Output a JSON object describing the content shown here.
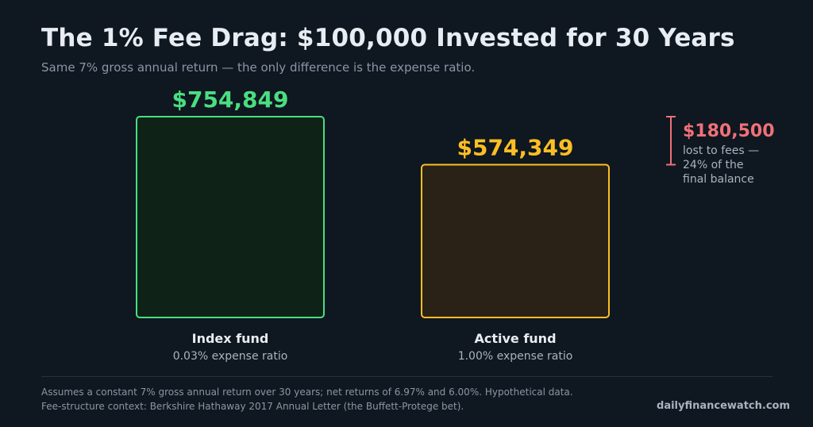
{
  "header": {
    "title": "The 1% Fee Drag: $100,000 Invested for 30 Years",
    "subtitle": "Same 7% gross annual return — the only difference is the expense ratio."
  },
  "chart_data": {
    "type": "bar",
    "categories": [
      "Index fund",
      "Active fund"
    ],
    "category_sublabels": [
      "0.03% expense ratio",
      "1.00% expense ratio"
    ],
    "values": [
      754849,
      574349
    ],
    "value_labels": [
      "$754,849",
      "$574,349"
    ],
    "colors": {
      "index": "#4ade80",
      "index_fill": "#0f2218",
      "active": "#fbbf24",
      "active_fill": "#2a2216",
      "callout": "#f07178"
    },
    "ylim": [
      0,
      754849
    ],
    "annotation": {
      "value": "$180,500",
      "text_lines": [
        "lost to fees —",
        "24% of the",
        "final balance"
      ]
    },
    "grid": false
  },
  "footer": {
    "note1": "Assumes a constant 7% gross annual return over 30 years; net returns of 6.97% and 6.00%. Hypothetical data.",
    "note2": "Fee-structure context: Berkshire Hathaway 2017 Annual Letter (the Buffett-Protege bet).",
    "source": "dailyfinancewatch.com"
  }
}
